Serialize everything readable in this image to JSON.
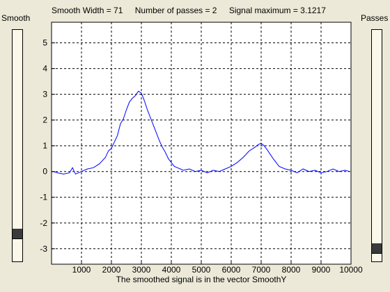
{
  "window": {
    "title_parts": [
      "Smooth Width = 71",
      "Number of passes = 2",
      "Signal maximum = 3.1217"
    ]
  },
  "sliders": {
    "smooth": {
      "label": "Smooth",
      "level": 0.1
    },
    "passes": {
      "label": "Passes",
      "level": 0.1
    }
  },
  "chart_data": {
    "type": "line",
    "title": "",
    "xlabel": "The smoothed signal is in the vector SmoothY",
    "ylabel": "",
    "xlim": [
      0,
      10000
    ],
    "ylim": [
      -3.6,
      5.8
    ],
    "xticks": [
      1000,
      2000,
      3000,
      4000,
      5000,
      6000,
      7000,
      8000,
      9000,
      10000
    ],
    "yticks": [
      -3,
      -2,
      -1,
      0,
      1,
      2,
      3,
      4,
      5
    ],
    "grid": true,
    "line_color": "#0000ff",
    "series": [
      {
        "x": [
          50,
          200,
          400,
          600,
          700,
          800,
          1000,
          1200,
          1400,
          1600,
          1800,
          1900,
          2000,
          2100,
          2200,
          2300,
          2400,
          2500,
          2600,
          2700,
          2800,
          2900,
          3000,
          3100,
          3200,
          3300,
          3400,
          3500,
          3600,
          3700,
          3800,
          3900,
          4000,
          4100,
          4200,
          4300,
          4400,
          4600,
          4800,
          5000,
          5200,
          5400,
          5600,
          5800,
          6000,
          6200,
          6400,
          6600,
          6800,
          6900,
          7000,
          7100,
          7200,
          7400,
          7600,
          7800,
          8000,
          8200,
          8400,
          8600,
          8800,
          9000,
          9200,
          9400,
          9600,
          9800,
          9950
        ],
        "y": [
          0,
          -0.05,
          -0.1,
          -0.05,
          0.15,
          -0.1,
          0,
          0.1,
          0.15,
          0.3,
          0.55,
          0.8,
          0.9,
          1.15,
          1.4,
          1.85,
          2.05,
          2.4,
          2.7,
          2.85,
          2.95,
          3.12,
          3.05,
          2.75,
          2.4,
          2.1,
          1.8,
          1.5,
          1.2,
          0.95,
          0.75,
          0.5,
          0.35,
          0.2,
          0.15,
          0.1,
          0.05,
          0.1,
          0,
          0.05,
          -0.05,
          0.05,
          0,
          0.1,
          0.2,
          0.35,
          0.55,
          0.8,
          0.95,
          1.05,
          1.1,
          1.0,
          0.85,
          0.5,
          0.2,
          0.1,
          0.05,
          -0.05,
          0.1,
          0,
          0.05,
          -0.05,
          0,
          0.1,
          0,
          0.05,
          0
        ]
      }
    ]
  }
}
